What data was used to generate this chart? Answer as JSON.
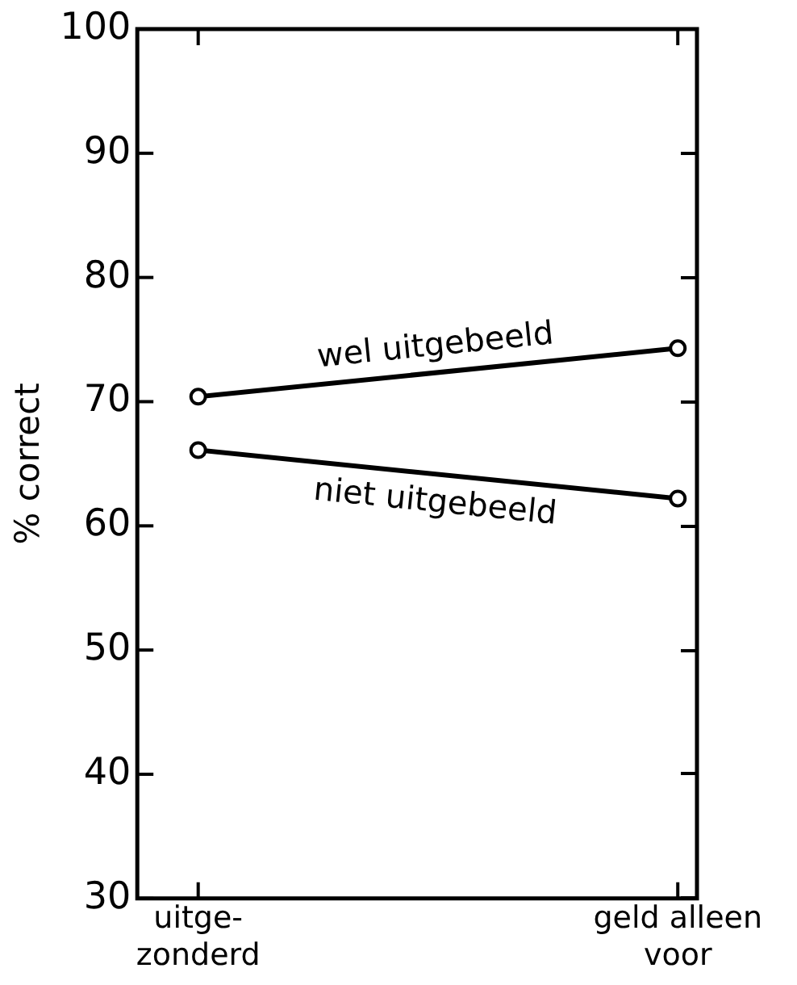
{
  "chart_data": {
    "type": "line",
    "ylabel": "% correct",
    "categories": [
      "uitge-\nzonderd",
      "geld alleen\nvoor"
    ],
    "series": [
      {
        "name": "wel uitgebeeld",
        "color": "#000000",
        "values": [
          70.4,
          74.3
        ]
      },
      {
        "name": "niet uitgebeeld",
        "color": "#000000",
        "values": [
          66.1,
          62.2
        ]
      }
    ],
    "ylim": [
      30,
      100
    ],
    "yticks": [
      30,
      40,
      50,
      60,
      70,
      80,
      90,
      100
    ],
    "marker": "circle",
    "line_style": "solid",
    "grid": false,
    "legend": false
  }
}
